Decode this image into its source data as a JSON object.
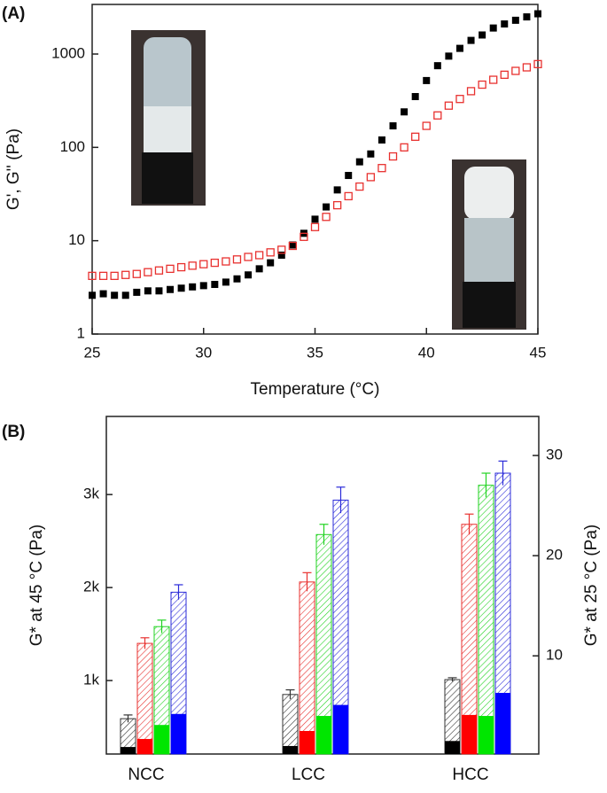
{
  "chart_data": [
    {
      "type": "scatter",
      "panel_label": "(A)",
      "x_label": "Temperature (°C)",
      "y_label": "G', G'' (Pa)",
      "log_y": true,
      "xlim": [
        25,
        45
      ],
      "ylim": [
        1,
        3400
      ],
      "xticks": [
        25,
        30,
        35,
        40,
        45
      ],
      "yticks": [
        1,
        10,
        100,
        1000
      ],
      "x": [
        25,
        25.5,
        26,
        26.5,
        27,
        27.5,
        28,
        28.5,
        29,
        29.5,
        30,
        30.5,
        31,
        31.5,
        32,
        32.5,
        33,
        33.5,
        34,
        34.5,
        35,
        35.5,
        36,
        36.5,
        37,
        37.5,
        38,
        38.5,
        39,
        39.5,
        40,
        40.5,
        41,
        41.5,
        42,
        42.5,
        43,
        43.5,
        44,
        44.5,
        45
      ],
      "series": [
        {
          "color": "#000000",
          "marker": "filled",
          "values": [
            2.6,
            2.7,
            2.6,
            2.6,
            2.8,
            2.9,
            2.9,
            3.0,
            3.1,
            3.2,
            3.3,
            3.4,
            3.6,
            3.9,
            4.3,
            5.0,
            5.8,
            7.0,
            9.0,
            12,
            17,
            23,
            35,
            50,
            70,
            85,
            120,
            170,
            240,
            350,
            520,
            750,
            950,
            1150,
            1400,
            1600,
            1900,
            2100,
            2300,
            2500,
            2700
          ]
        },
        {
          "color": "#e8312f",
          "marker": "open",
          "values": [
            4.2,
            4.2,
            4.2,
            4.3,
            4.4,
            4.6,
            4.8,
            5.0,
            5.2,
            5.4,
            5.6,
            5.8,
            6.0,
            6.3,
            6.7,
            7.0,
            7.5,
            8.0,
            8.8,
            11,
            14,
            18,
            24,
            30,
            38,
            48,
            60,
            80,
            100,
            130,
            170,
            220,
            280,
            330,
            400,
            470,
            530,
            600,
            660,
            720,
            780
          ]
        }
      ]
    },
    {
      "type": "bar",
      "panel_label": "(B)",
      "y_label": "G* at 45 °C (Pa)",
      "y2_label": "G* at 25 °C (Pa)",
      "categories": [
        "NCC",
        "LCC",
        "HCC"
      ],
      "ylim": [
        210,
        3840
      ],
      "yticks": [
        {
          "value": 1000,
          "label": "1k"
        },
        {
          "value": 2000,
          "label": "2k"
        },
        {
          "value": 3000,
          "label": "3k"
        }
      ],
      "y2lim": [
        0.2,
        33.9
      ],
      "y2ticks": [
        10,
        20,
        30
      ],
      "series": [
        {
          "color": "#333333",
          "fill": "hatch",
          "values": [
            590,
            850,
            1010
          ],
          "errors": [
            40,
            50,
            20
          ]
        },
        {
          "color": "#e8312f",
          "fill": "hatch",
          "values": [
            1400,
            2060,
            2680
          ],
          "errors": [
            60,
            100,
            110
          ]
        },
        {
          "color": "#22d322",
          "fill": "hatch",
          "values": [
            1580,
            2570,
            3100
          ],
          "errors": [
            70,
            110,
            130
          ]
        },
        {
          "color": "#2b2bd9",
          "fill": "hatch",
          "values": [
            1950,
            2940,
            3230
          ],
          "errors": [
            80,
            140,
            130
          ]
        },
        {
          "color": "#000000",
          "fill": "solid",
          "axis": "y2",
          "values": [
            0.9,
            1.0,
            1.5
          ]
        },
        {
          "color": "#ff0000",
          "fill": "solid",
          "axis": "y2",
          "values": [
            1.7,
            2.5,
            4.1
          ]
        },
        {
          "color": "#00e600",
          "fill": "solid",
          "axis": "y2",
          "values": [
            3.1,
            4.0,
            4.0
          ]
        },
        {
          "color": "#0000ff",
          "fill": "solid",
          "axis": "y2",
          "values": [
            4.2,
            5.1,
            6.3
          ]
        }
      ]
    }
  ]
}
